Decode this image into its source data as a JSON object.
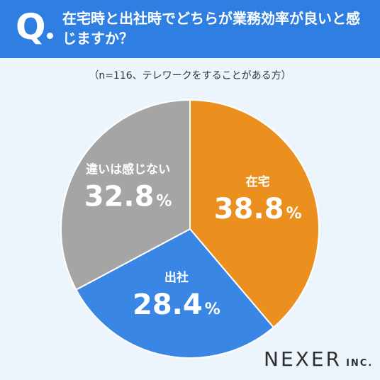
{
  "header": {
    "q_letter": "Q",
    "question": "在宅時と出社時でどちらが業務効率が良いと感じますか？"
  },
  "subtitle": "（n=116、テレワークをすることがある方）",
  "logo": {
    "main": "NEXER",
    "inc": "INC."
  },
  "colors": {
    "header_bg": "#2e7fe1",
    "background": "#edf5fc",
    "slice_zaitaku": "#eb8f1f",
    "slice_shussha": "#3a86e4",
    "slice_chigai": "#a5a5a5"
  },
  "chart_data": {
    "type": "pie",
    "title": "",
    "unit": "%",
    "slices": [
      {
        "label": "在宅",
        "value": 38.8,
        "value_text": "38.8",
        "color": "#eb8f1f"
      },
      {
        "label": "出社",
        "value": 28.4,
        "value_text": "28.4",
        "color": "#3a86e4"
      },
      {
        "label": "違いは感じない",
        "value": 32.8,
        "value_text": "32.8",
        "color": "#a5a5a5"
      }
    ]
  }
}
